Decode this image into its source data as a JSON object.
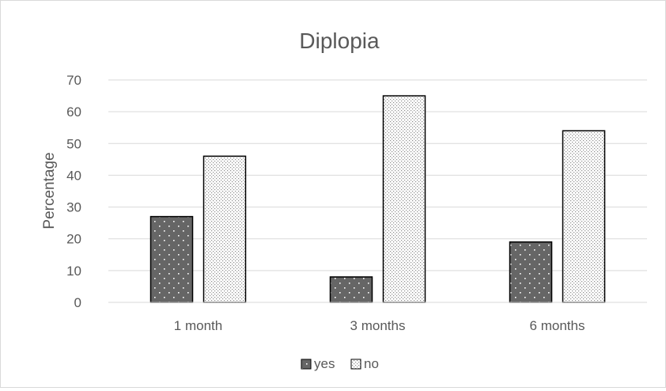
{
  "chart_data": {
    "type": "bar",
    "title": "Diplopia",
    "xlabel": "",
    "ylabel": "Percentage",
    "categories": [
      "1 month",
      "3 months",
      "6 months"
    ],
    "series": [
      {
        "name": "yes",
        "values": [
          27,
          8,
          19
        ],
        "fill": "#666666",
        "pattern": "sparse-white-dots"
      },
      {
        "name": "no",
        "values": [
          46,
          65,
          54
        ],
        "fill": "#ffffff",
        "pattern": "dense-gray-dots"
      }
    ],
    "ylim": [
      0,
      70
    ],
    "yticks": [
      0,
      10,
      20,
      30,
      40,
      50,
      60,
      70
    ],
    "grid": "horizontal",
    "legend": "bottom",
    "colors": {
      "axis_text": "#595959",
      "gridline": "#d9d9d9",
      "bar_border": "#000000"
    }
  }
}
